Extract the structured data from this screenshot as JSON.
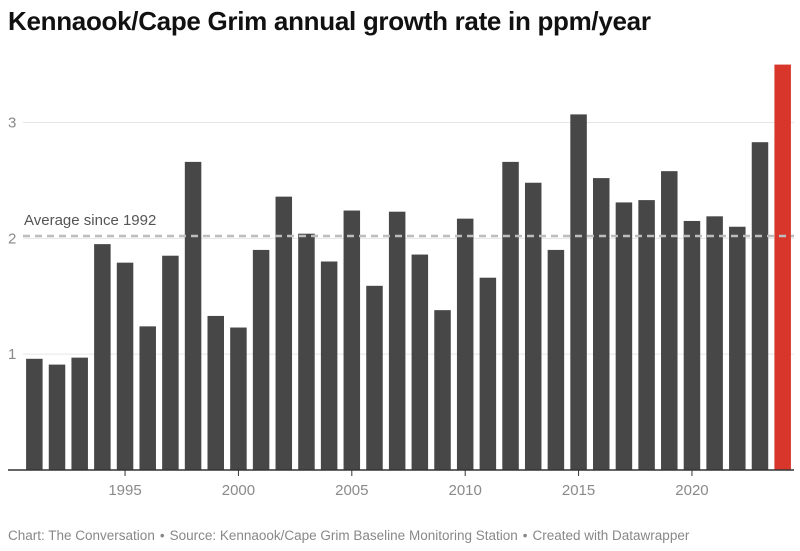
{
  "title": "Kennaook/Cape Grim annual growth rate in ppm/year",
  "footer": {
    "chart_credit": "Chart: The Conversation",
    "source": "Source: Kennaook/Cape Grim Baseline Monitoring Station",
    "created_with": "Created with Datawrapper",
    "separator": "•"
  },
  "colors": {
    "bar": "#474747",
    "highlight": "#d8362b",
    "grid": "#e6e6e6",
    "average_line": "#bdbdbd",
    "tick_text": "#8a8a8a",
    "axis": "#333333"
  },
  "chart_data": {
    "type": "bar",
    "title": "Kennaook/Cape Grim annual growth rate in ppm/year",
    "xlabel": "",
    "ylabel": "",
    "x": [
      1991,
      1992,
      1993,
      1994,
      1995,
      1996,
      1997,
      1998,
      1999,
      2000,
      2001,
      2002,
      2003,
      2004,
      2005,
      2006,
      2007,
      2008,
      2009,
      2010,
      2011,
      2012,
      2013,
      2014,
      2015,
      2016,
      2017,
      2018,
      2019,
      2020,
      2021,
      2022,
      2023,
      2024
    ],
    "values": [
      0.96,
      0.91,
      0.97,
      1.95,
      1.79,
      1.24,
      1.85,
      2.66,
      1.33,
      1.23,
      1.9,
      2.36,
      2.04,
      1.8,
      2.24,
      1.59,
      2.23,
      1.86,
      1.38,
      2.17,
      1.66,
      2.66,
      2.48,
      1.9,
      3.07,
      2.52,
      2.31,
      2.33,
      2.58,
      2.15,
      2.19,
      2.1,
      2.83,
      3.5
    ],
    "highlight_x": 2024,
    "ylim": [
      0,
      3.6
    ],
    "y_ticks": [
      1,
      2,
      3
    ],
    "x_ticks": [
      1995,
      2000,
      2005,
      2010,
      2015,
      2020
    ],
    "reference_line": {
      "value": 2.02,
      "label": "Average since 1992"
    },
    "grid": true
  }
}
